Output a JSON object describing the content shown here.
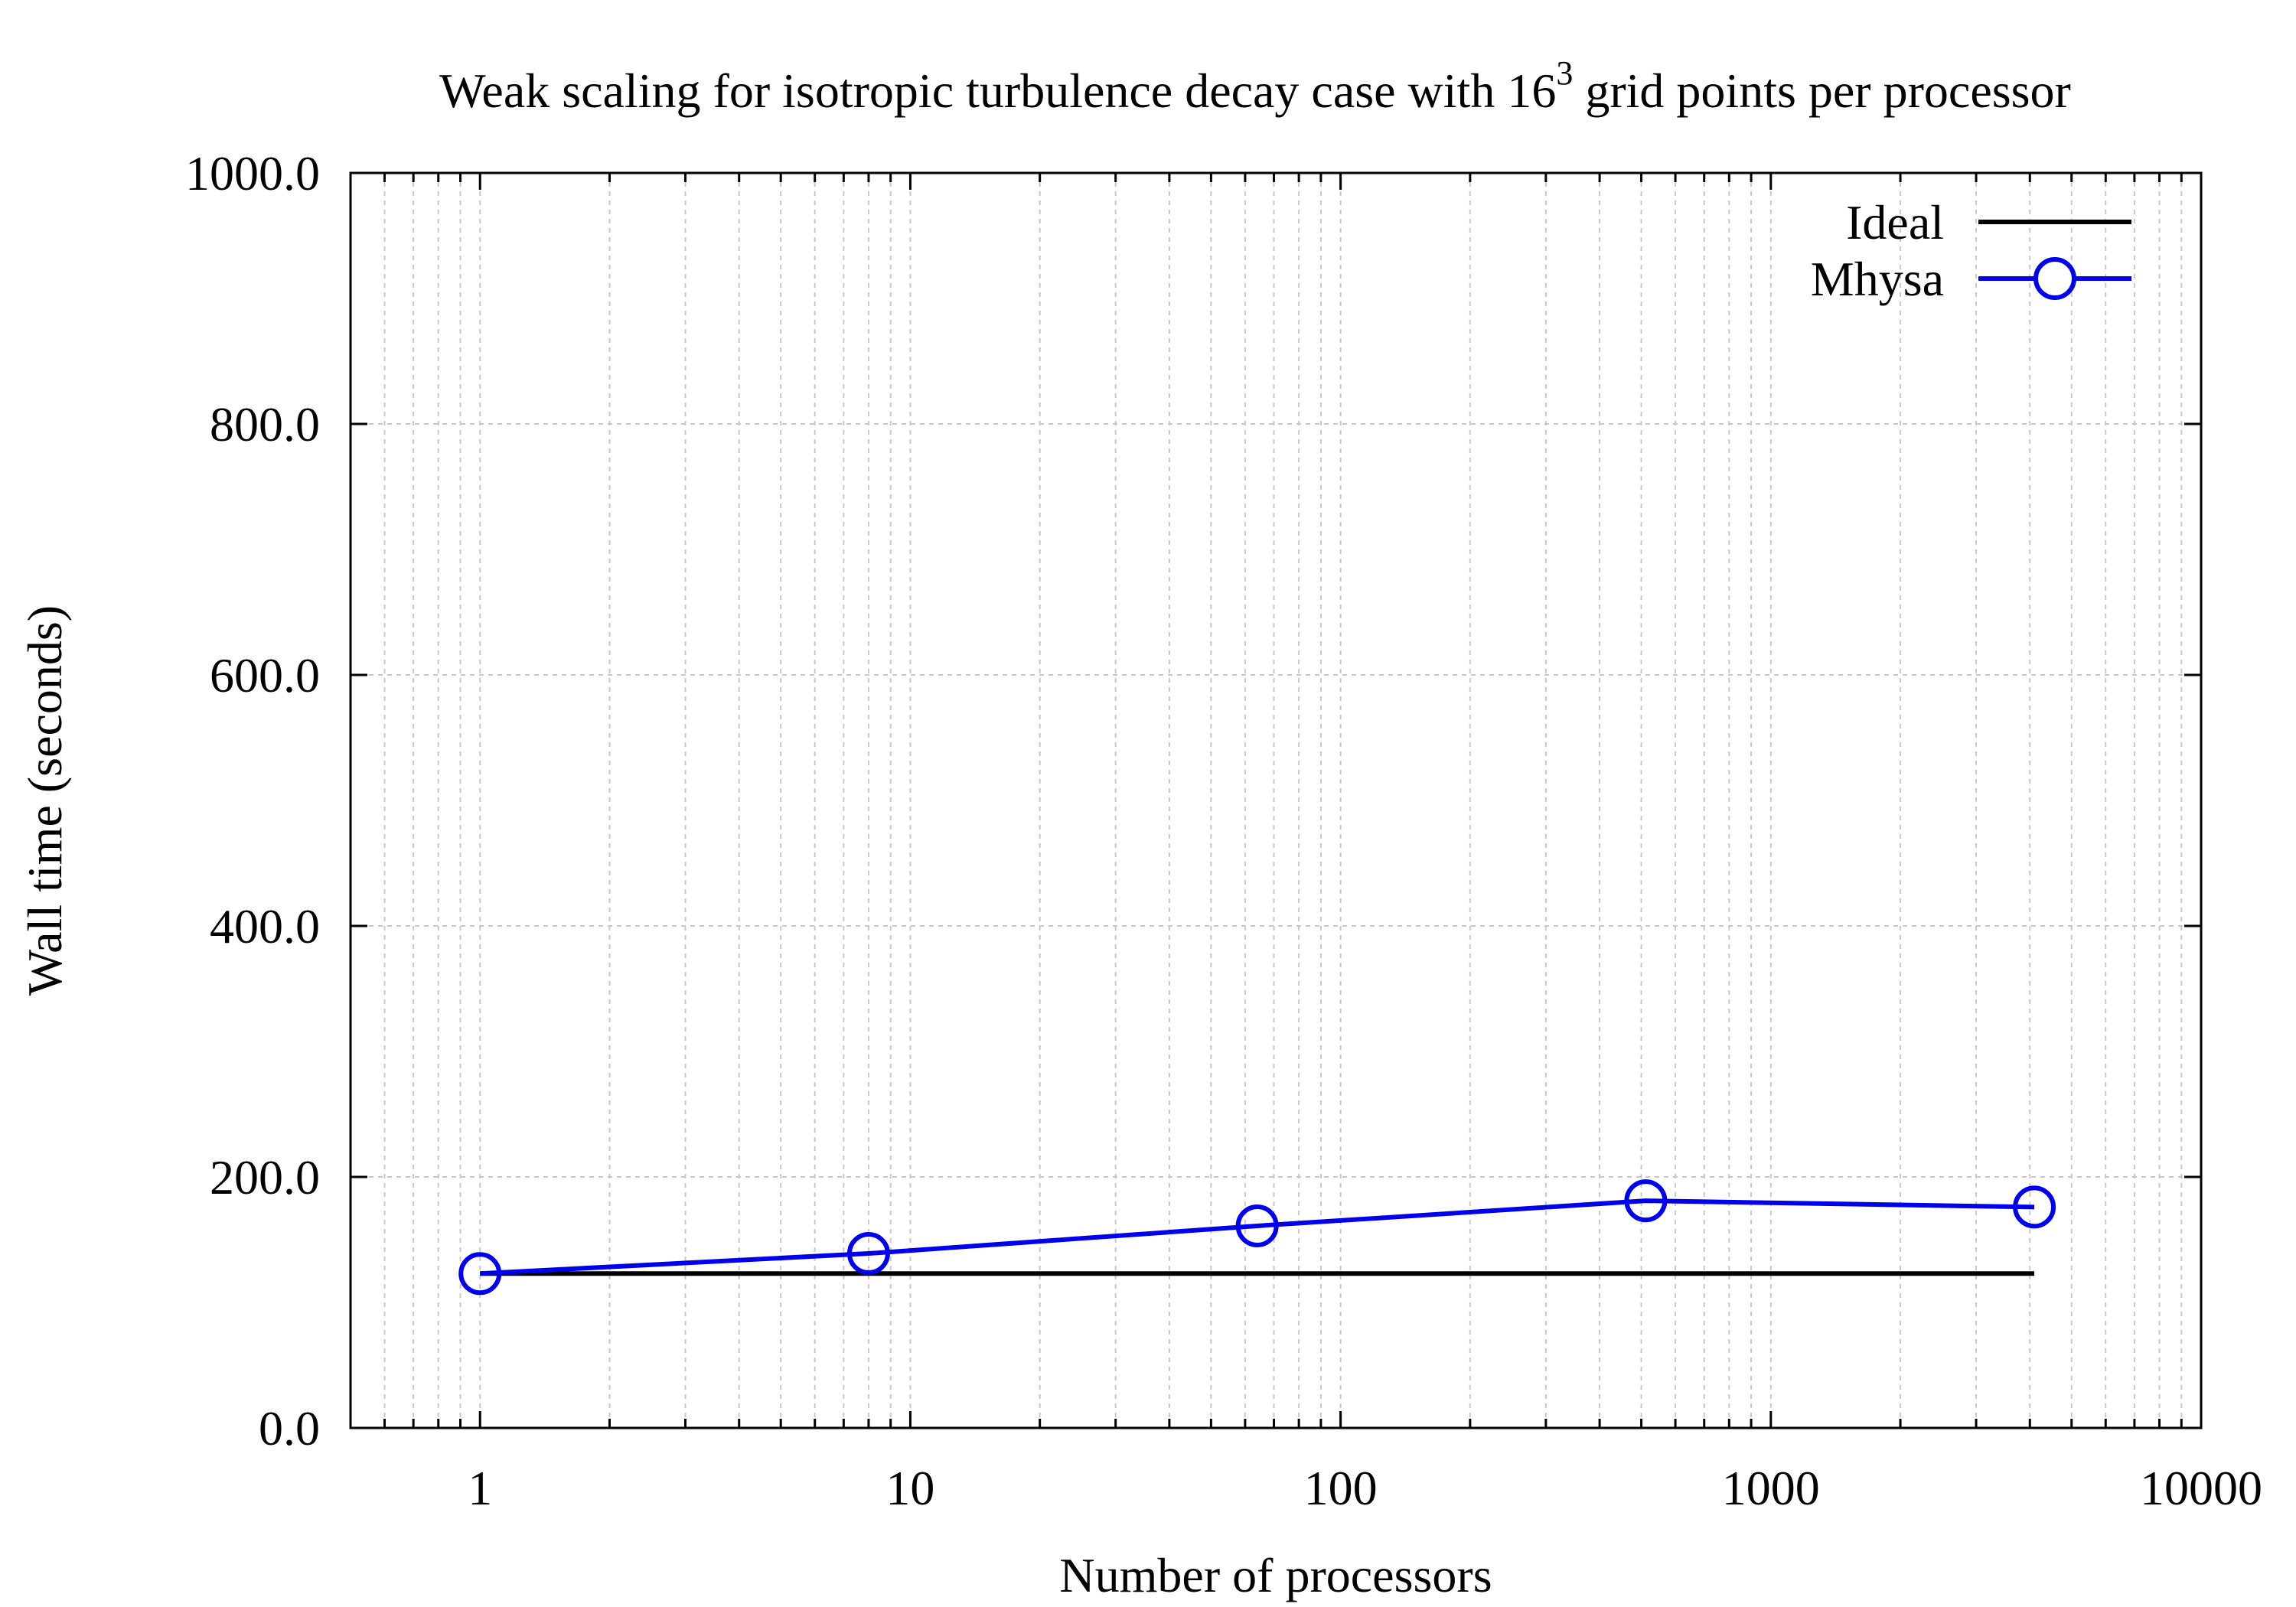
{
  "chart_data": {
    "type": "line",
    "title": {
      "main": "Weak scaling for isotropic turbulence decay case with 16",
      "superscript": "3",
      "suffix": " grid points per processor"
    },
    "xlabel": "Number of processors",
    "ylabel": "Wall time (seconds)",
    "xscale": "log",
    "xlim": [
      0.5,
      10000
    ],
    "ylim": [
      0,
      1000
    ],
    "xticks": [
      1,
      10,
      100,
      1000,
      10000
    ],
    "xtick_labels": [
      "1",
      "10",
      "100",
      "1000",
      "10000"
    ],
    "yticks": [
      0,
      200,
      400,
      600,
      800,
      1000
    ],
    "ytick_labels": [
      "0.0",
      "200.0",
      "400.0",
      "600.0",
      "800.0",
      "1000.0"
    ],
    "grid": true,
    "legend_position": "top-right",
    "series": [
      {
        "name": "Ideal",
        "color": "#000000",
        "marker": "none",
        "x": [
          1,
          4096
        ],
        "y": [
          123,
          123
        ]
      },
      {
        "name": "Mhysa",
        "color": "#0000ee",
        "marker": "open-circle",
        "x": [
          1,
          8,
          64,
          512,
          4096
        ],
        "y": [
          123,
          139,
          161,
          181,
          176
        ]
      }
    ]
  }
}
